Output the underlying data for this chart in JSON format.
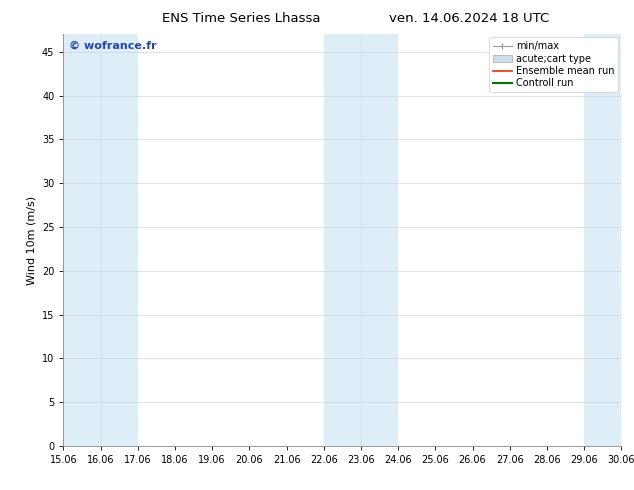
{
  "title_left": "ENS Time Series Lhassa",
  "title_right": "ven. 14.06.2024 18 UTC",
  "ylabel": "Wind 10m (m/s)",
  "xlim": [
    15.06,
    30.06
  ],
  "ylim": [
    0,
    47
  ],
  "yticks": [
    0,
    5,
    10,
    15,
    20,
    25,
    30,
    35,
    40,
    45
  ],
  "xticks": [
    15.06,
    16.06,
    17.06,
    18.06,
    19.06,
    20.06,
    21.06,
    22.06,
    23.06,
    24.06,
    25.06,
    26.06,
    27.06,
    28.06,
    29.06,
    30.06
  ],
  "xtick_labels": [
    "15.06",
    "16.06",
    "17.06",
    "18.06",
    "19.06",
    "20.06",
    "21.06",
    "22.06",
    "23.06",
    "24.06",
    "25.06",
    "26.06",
    "27.06",
    "28.06",
    "29.06",
    "30.06"
  ],
  "shaded_bands": [
    {
      "xmin": 15.06,
      "xmax": 17.06,
      "color": "#ddeef9"
    },
    {
      "xmin": 22.06,
      "xmax": 24.06,
      "color": "#ddeef9"
    },
    {
      "xmin": 29.06,
      "xmax": 30.06,
      "color": "#ddeef9"
    }
  ],
  "thin_dividers": [
    16.06,
    23.06
  ],
  "watermark_text": "© wofrance.fr",
  "watermark_color": "#2244bb",
  "bg_color": "#ffffff",
  "grid_color": "#cccccc",
  "legend_items": [
    {
      "label": "min/max",
      "color": "#aaaaaa",
      "lw": 1.0
    },
    {
      "label": "acute;cart type",
      "color": "#bbccdd",
      "lw": 5
    },
    {
      "label": "Ensemble mean run",
      "color": "#ff0000",
      "lw": 1.2
    },
    {
      "label": "Controll run",
      "color": "#008800",
      "lw": 1.5
    }
  ],
  "title_fontsize": 9.5,
  "ylabel_fontsize": 8,
  "tick_fontsize": 7,
  "watermark_fontsize": 8,
  "legend_fontsize": 7
}
